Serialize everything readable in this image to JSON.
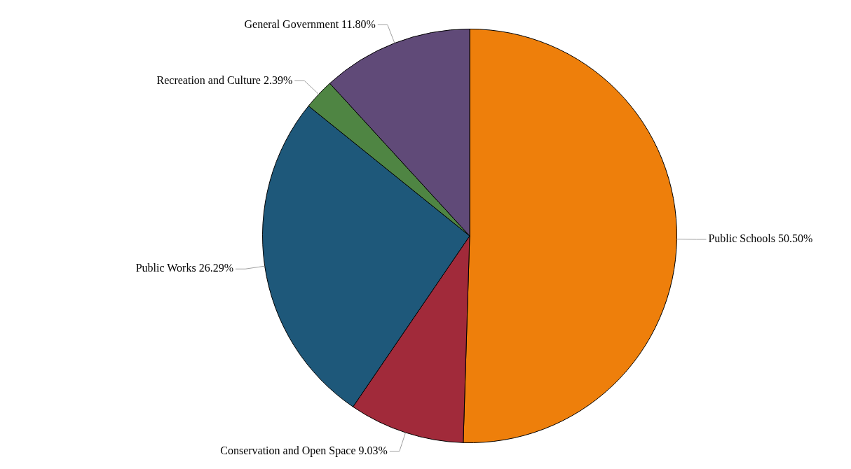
{
  "chart_data": {
    "type": "pie",
    "categories": [
      "Public Schools",
      "Conservation and Open Space",
      "Public Works",
      "Recreation and Culture",
      "General Government"
    ],
    "values": [
      50.5,
      9.03,
      26.29,
      2.39,
      11.8
    ],
    "colors": [
      "#ee7f0b",
      "#a12a3a",
      "#1e587a",
      "#4f8543",
      "#604a78"
    ],
    "value_labels": [
      "50.50%",
      "9.03%",
      "26.29%",
      "2.39%",
      "11.80%"
    ],
    "legend": false
  }
}
